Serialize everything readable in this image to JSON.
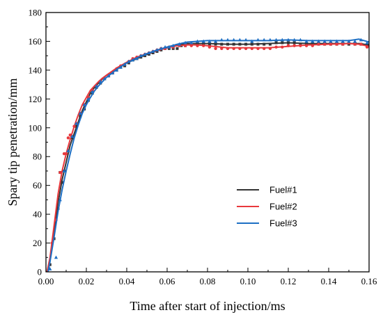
{
  "chart_data": {
    "type": "line",
    "xlabel": "Time after start of injection/ms",
    "ylabel": "Spary tip penetration/mm",
    "xlim": [
      0,
      0.16
    ],
    "ylim": [
      0,
      180
    ],
    "x_ticks": [
      "0.00",
      "0.02",
      "0.04",
      "0.06",
      "0.08",
      "0.10",
      "0.12",
      "0.14",
      "0.16"
    ],
    "y_ticks": [
      "0",
      "20",
      "40",
      "60",
      "80",
      "100",
      "120",
      "140",
      "160",
      "180"
    ],
    "legend_position": "center-right",
    "series": [
      {
        "name": "Fuel#1",
        "color": "#333333",
        "marker": "square",
        "curve": [
          [
            0.0005,
            0
          ],
          [
            0.002,
            8
          ],
          [
            0.004,
            28
          ],
          [
            0.006,
            48
          ],
          [
            0.008,
            64
          ],
          [
            0.01,
            76
          ],
          [
            0.012,
            88
          ],
          [
            0.014,
            96
          ],
          [
            0.016,
            104
          ],
          [
            0.018,
            112
          ],
          [
            0.02,
            118
          ],
          [
            0.022,
            124
          ],
          [
            0.024,
            128
          ],
          [
            0.026,
            131
          ],
          [
            0.028,
            134
          ],
          [
            0.03,
            136.5
          ],
          [
            0.035,
            141
          ],
          [
            0.04,
            145
          ],
          [
            0.045,
            148
          ],
          [
            0.05,
            151
          ],
          [
            0.055,
            153.5
          ],
          [
            0.06,
            156
          ],
          [
            0.065,
            157.5
          ],
          [
            0.07,
            158.5
          ],
          [
            0.08,
            158.5
          ],
          [
            0.09,
            158
          ],
          [
            0.1,
            158
          ],
          [
            0.11,
            158.5
          ],
          [
            0.12,
            159
          ],
          [
            0.13,
            158.5
          ],
          [
            0.14,
            158.5
          ],
          [
            0.15,
            158.5
          ],
          [
            0.155,
            158.5
          ],
          [
            0.16,
            157.5
          ]
        ],
        "points": [
          [
            0.002,
            5
          ],
          [
            0.004,
            23
          ],
          [
            0.006,
            44
          ],
          [
            0.007,
            69
          ],
          [
            0.008,
            62
          ],
          [
            0.009,
            70
          ],
          [
            0.011,
            84
          ],
          [
            0.013,
            93
          ],
          [
            0.015,
            101
          ],
          [
            0.017,
            108
          ],
          [
            0.019,
            113
          ],
          [
            0.021,
            119
          ],
          [
            0.023,
            124
          ],
          [
            0.025,
            128
          ],
          [
            0.027,
            131
          ],
          [
            0.029,
            134
          ],
          [
            0.031,
            136
          ],
          [
            0.033,
            138
          ],
          [
            0.035,
            140
          ],
          [
            0.037,
            142
          ],
          [
            0.039,
            143
          ],
          [
            0.041,
            145
          ],
          [
            0.043,
            147
          ],
          [
            0.045,
            148
          ],
          [
            0.047,
            149
          ],
          [
            0.049,
            150
          ],
          [
            0.051,
            151
          ],
          [
            0.053,
            152
          ],
          [
            0.055,
            153
          ],
          [
            0.057,
            154
          ],
          [
            0.059,
            155
          ],
          [
            0.061,
            155
          ],
          [
            0.063,
            155
          ],
          [
            0.065,
            155
          ],
          [
            0.067,
            157
          ],
          [
            0.069,
            157
          ],
          [
            0.072,
            158
          ],
          [
            0.075,
            158
          ],
          [
            0.078,
            158
          ],
          [
            0.081,
            158
          ],
          [
            0.084,
            158
          ],
          [
            0.087,
            158
          ],
          [
            0.09,
            158
          ],
          [
            0.093,
            158
          ],
          [
            0.096,
            158
          ],
          [
            0.099,
            158
          ],
          [
            0.102,
            158
          ],
          [
            0.105,
            158
          ],
          [
            0.108,
            158
          ],
          [
            0.111,
            158
          ],
          [
            0.114,
            159
          ],
          [
            0.117,
            159
          ],
          [
            0.12,
            159
          ],
          [
            0.123,
            159
          ],
          [
            0.126,
            158
          ],
          [
            0.129,
            158
          ],
          [
            0.132,
            158
          ],
          [
            0.135,
            158
          ],
          [
            0.138,
            158
          ],
          [
            0.141,
            158
          ],
          [
            0.144,
            158
          ],
          [
            0.147,
            158
          ],
          [
            0.15,
            158
          ],
          [
            0.153,
            158
          ],
          [
            0.156,
            158
          ],
          [
            0.159,
            157
          ]
        ]
      },
      {
        "name": "Fuel#2",
        "color": "#e8383c",
        "marker": "circle",
        "curve": [
          [
            0.0005,
            0
          ],
          [
            0.002,
            10
          ],
          [
            0.004,
            32
          ],
          [
            0.006,
            54
          ],
          [
            0.008,
            70
          ],
          [
            0.01,
            82
          ],
          [
            0.012,
            92
          ],
          [
            0.014,
            101
          ],
          [
            0.016,
            109
          ],
          [
            0.018,
            116
          ],
          [
            0.02,
            121
          ],
          [
            0.022,
            126
          ],
          [
            0.024,
            129
          ],
          [
            0.026,
            132
          ],
          [
            0.028,
            134.5
          ],
          [
            0.03,
            136.5
          ],
          [
            0.035,
            141.5
          ],
          [
            0.04,
            145.5
          ],
          [
            0.045,
            149
          ],
          [
            0.05,
            151.5
          ],
          [
            0.055,
            153.5
          ],
          [
            0.06,
            155.5
          ],
          [
            0.065,
            157
          ],
          [
            0.07,
            157.5
          ],
          [
            0.075,
            157.5
          ],
          [
            0.08,
            157
          ],
          [
            0.09,
            155.5
          ],
          [
            0.1,
            155.5
          ],
          [
            0.11,
            155.5
          ],
          [
            0.12,
            156.5
          ],
          [
            0.13,
            157.5
          ],
          [
            0.14,
            158
          ],
          [
            0.15,
            158.5
          ],
          [
            0.155,
            158
          ],
          [
            0.16,
            156.5
          ]
        ],
        "points": [
          [
            0.003,
            20
          ],
          [
            0.005,
            36
          ],
          [
            0.007,
            69
          ],
          [
            0.009,
            82
          ],
          [
            0.01,
            82
          ],
          [
            0.011,
            93
          ],
          [
            0.012,
            95
          ],
          [
            0.014,
            101
          ],
          [
            0.015,
            103
          ],
          [
            0.017,
            110
          ],
          [
            0.019,
            116
          ],
          [
            0.021,
            121
          ],
          [
            0.023,
            126
          ],
          [
            0.025,
            129
          ],
          [
            0.027,
            132
          ],
          [
            0.029,
            134
          ],
          [
            0.031,
            136
          ],
          [
            0.033,
            138
          ],
          [
            0.035,
            141
          ],
          [
            0.037,
            143
          ],
          [
            0.039,
            144
          ],
          [
            0.041,
            146
          ],
          [
            0.043,
            148
          ],
          [
            0.045,
            149
          ],
          [
            0.047,
            150
          ],
          [
            0.049,
            151
          ],
          [
            0.051,
            152
          ],
          [
            0.053,
            153
          ],
          [
            0.055,
            154
          ],
          [
            0.057,
            155
          ],
          [
            0.059,
            155
          ],
          [
            0.061,
            156
          ],
          [
            0.063,
            156
          ],
          [
            0.066,
            157
          ],
          [
            0.069,
            157
          ],
          [
            0.072,
            157
          ],
          [
            0.075,
            157
          ],
          [
            0.078,
            157
          ],
          [
            0.081,
            156
          ],
          [
            0.084,
            155
          ],
          [
            0.087,
            155
          ],
          [
            0.09,
            155
          ],
          [
            0.093,
            155
          ],
          [
            0.096,
            155
          ],
          [
            0.099,
            155
          ],
          [
            0.102,
            155
          ],
          [
            0.105,
            155
          ],
          [
            0.108,
            155
          ],
          [
            0.111,
            155
          ],
          [
            0.114,
            156
          ],
          [
            0.117,
            156
          ],
          [
            0.12,
            157
          ],
          [
            0.123,
            157
          ],
          [
            0.126,
            157
          ],
          [
            0.129,
            157
          ],
          [
            0.132,
            157
          ],
          [
            0.135,
            158
          ],
          [
            0.138,
            158
          ],
          [
            0.141,
            158
          ],
          [
            0.144,
            158
          ],
          [
            0.147,
            158
          ],
          [
            0.15,
            159
          ],
          [
            0.153,
            158
          ],
          [
            0.156,
            158
          ],
          [
            0.159,
            156
          ]
        ]
      },
      {
        "name": "Fuel#3",
        "color": "#1d6fc4",
        "marker": "triangle",
        "curve": [
          [
            0.001,
            0
          ],
          [
            0.002,
            7
          ],
          [
            0.004,
            24
          ],
          [
            0.006,
            42
          ],
          [
            0.008,
            57
          ],
          [
            0.01,
            70
          ],
          [
            0.012,
            82
          ],
          [
            0.014,
            93
          ],
          [
            0.016,
            102
          ],
          [
            0.018,
            110
          ],
          [
            0.02,
            116
          ],
          [
            0.022,
            121
          ],
          [
            0.024,
            125.5
          ],
          [
            0.026,
            129
          ],
          [
            0.028,
            132
          ],
          [
            0.03,
            135
          ],
          [
            0.035,
            140.5
          ],
          [
            0.04,
            145
          ],
          [
            0.045,
            148.5
          ],
          [
            0.05,
            151.5
          ],
          [
            0.055,
            154
          ],
          [
            0.06,
            156
          ],
          [
            0.065,
            158
          ],
          [
            0.07,
            159.5
          ],
          [
            0.08,
            160.5
          ],
          [
            0.09,
            160.5
          ],
          [
            0.1,
            160.5
          ],
          [
            0.11,
            160.5
          ],
          [
            0.12,
            161
          ],
          [
            0.13,
            160.5
          ],
          [
            0.14,
            160.5
          ],
          [
            0.15,
            160.5
          ],
          [
            0.155,
            161.5
          ],
          [
            0.16,
            159.5
          ]
        ],
        "points": [
          [
            0.002,
            2
          ],
          [
            0.005,
            10
          ],
          [
            0.007,
            50
          ],
          [
            0.009,
            70
          ],
          [
            0.011,
            84
          ],
          [
            0.013,
            94
          ],
          [
            0.015,
            103
          ],
          [
            0.017,
            110
          ],
          [
            0.019,
            116
          ],
          [
            0.021,
            120
          ],
          [
            0.023,
            125
          ],
          [
            0.025,
            129
          ],
          [
            0.027,
            132
          ],
          [
            0.029,
            134
          ],
          [
            0.031,
            136
          ],
          [
            0.033,
            138
          ],
          [
            0.035,
            140
          ],
          [
            0.037,
            142
          ],
          [
            0.039,
            144
          ],
          [
            0.041,
            146
          ],
          [
            0.043,
            147
          ],
          [
            0.045,
            148
          ],
          [
            0.047,
            150
          ],
          [
            0.049,
            151
          ],
          [
            0.051,
            152
          ],
          [
            0.053,
            153
          ],
          [
            0.055,
            154
          ],
          [
            0.057,
            155
          ],
          [
            0.059,
            156
          ],
          [
            0.061,
            156
          ],
          [
            0.063,
            157
          ],
          [
            0.066,
            158
          ],
          [
            0.069,
            159
          ],
          [
            0.072,
            159
          ],
          [
            0.075,
            160
          ],
          [
            0.078,
            160
          ],
          [
            0.081,
            160
          ],
          [
            0.084,
            160
          ],
          [
            0.087,
            161
          ],
          [
            0.09,
            161
          ],
          [
            0.093,
            161
          ],
          [
            0.096,
            161
          ],
          [
            0.099,
            161
          ],
          [
            0.102,
            160
          ],
          [
            0.105,
            161
          ],
          [
            0.108,
            161
          ],
          [
            0.111,
            161
          ],
          [
            0.114,
            161
          ],
          [
            0.117,
            161
          ],
          [
            0.12,
            161
          ],
          [
            0.123,
            161
          ],
          [
            0.126,
            161
          ],
          [
            0.129,
            160
          ],
          [
            0.132,
            160
          ],
          [
            0.135,
            160
          ],
          [
            0.138,
            160
          ],
          [
            0.141,
            160
          ],
          [
            0.144,
            160
          ],
          [
            0.147,
            160
          ],
          [
            0.15,
            160
          ],
          [
            0.153,
            160
          ],
          [
            0.156,
            161
          ],
          [
            0.159,
            159
          ]
        ]
      }
    ]
  }
}
